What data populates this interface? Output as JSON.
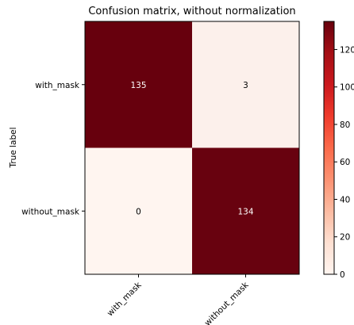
{
  "chart_data": {
    "type": "heatmap",
    "title": "Confusion matrix, without normalization",
    "ylabel": "True label",
    "xlabel": "",
    "row_labels": [
      "with_mask",
      "without_mask"
    ],
    "col_labels": [
      "with_mask",
      "without_mask"
    ],
    "values": [
      [
        135,
        3
      ],
      [
        0,
        134
      ]
    ],
    "colormap": "Reds",
    "color_low": "#fff5f0",
    "color_high": "#67000d",
    "colorbar": {
      "min": 0,
      "max": 135,
      "ticks": [
        0,
        20,
        40,
        60,
        80,
        100,
        120
      ],
      "tick_labels": [
        "0",
        "20",
        "40",
        "60",
        "80",
        "100",
        "120"
      ]
    }
  }
}
